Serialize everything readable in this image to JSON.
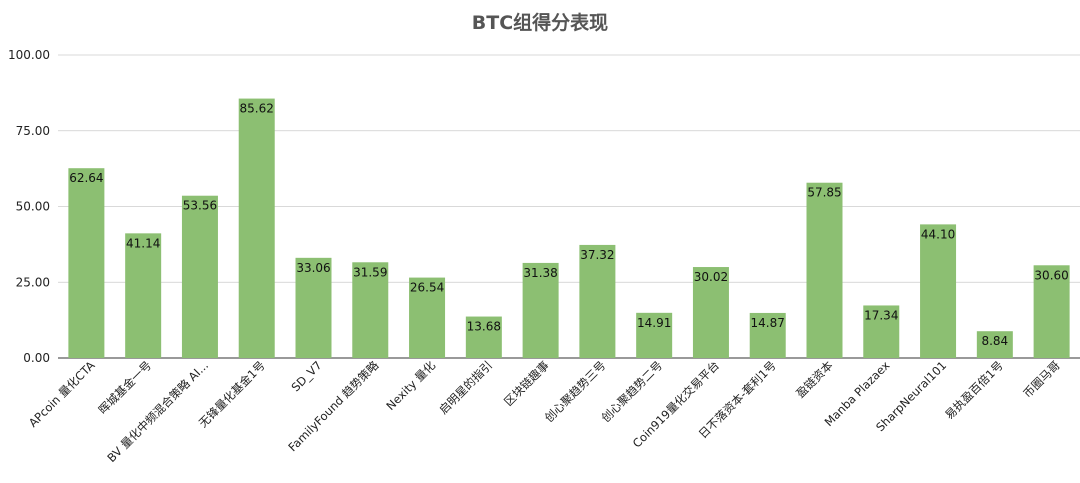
{
  "chart_data": {
    "type": "bar",
    "title": "BTC组得分表现",
    "xlabel": "",
    "ylabel": "",
    "ylim": [
      0,
      100
    ],
    "yticks": [
      "0.00",
      "25.00",
      "50.00",
      "75.00",
      "100.00"
    ],
    "grid": true,
    "legend": "none",
    "bar_color": "#8cbf72",
    "categories": [
      "APcoin 量化CTA",
      "晖城基金一号",
      "BV 量化中频混合策略 AI...",
      "无锋量化基金1号",
      "SD_V7",
      "FamilyFound 趋势策略",
      "Nexity 量化",
      "启明星的指引",
      "区块链趣事",
      "创心聚趋势三号",
      "创心聚趋势二号",
      "Coin919量化交易平台",
      "日不落资本-套利1号",
      "盈链资本",
      "Manba Plazaex",
      "SharpNeural101",
      "易执盈百倍1号",
      "币圈马哥"
    ],
    "values": [
      62.64,
      41.14,
      53.56,
      85.62,
      33.06,
      31.59,
      26.54,
      13.68,
      31.38,
      37.32,
      14.91,
      30.02,
      14.87,
      57.85,
      17.34,
      44.1,
      8.84,
      30.6
    ],
    "value_labels": [
      "62.64",
      "41.14",
      "53.56",
      "85.62",
      "33.06",
      "31.59",
      "26.54",
      "13.68",
      "31.38",
      "37.32",
      "14.91",
      "30.02",
      "14.87",
      "57.85",
      "17.34",
      "44.10",
      "8.84",
      "30.60"
    ]
  }
}
